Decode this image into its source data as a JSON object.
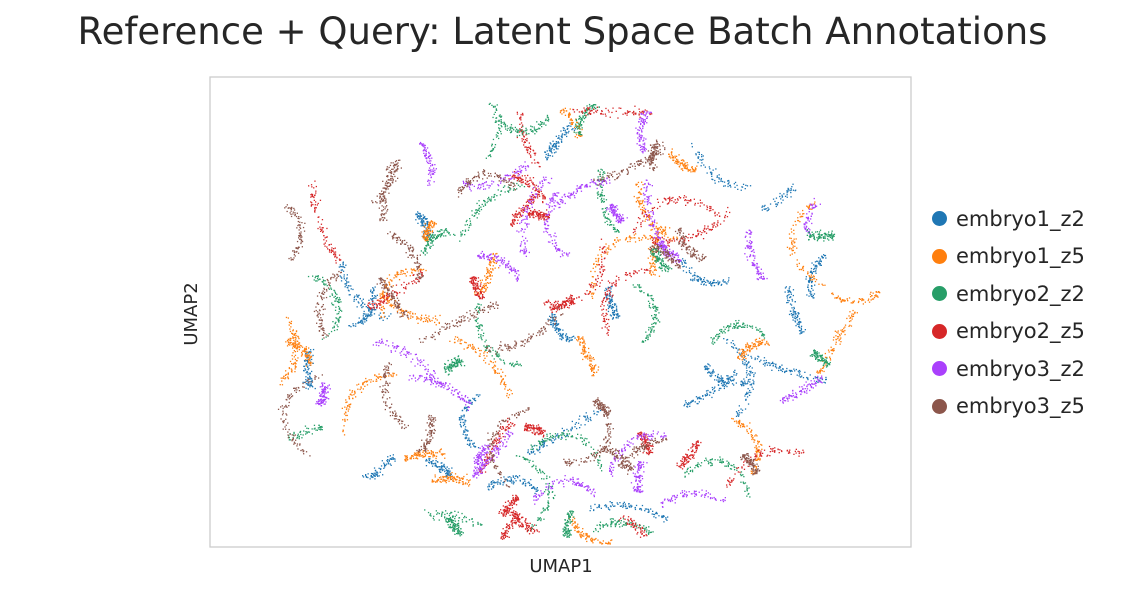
{
  "chart_data": {
    "type": "scatter",
    "title": "Reference + Query: Latent Space Batch Annotations",
    "xlabel": "UMAP1",
    "ylabel": "UMAP2",
    "ticks": "none",
    "grid": false,
    "legend_position": "right",
    "series": [
      {
        "name": "embryo1_z2",
        "color": "#1f77b4"
      },
      {
        "name": "embryo1_z5",
        "color": "#ff7f0e"
      },
      {
        "name": "embryo2_z2",
        "color": "#279e68"
      },
      {
        "name": "embryo2_z5",
        "color": "#d62728"
      },
      {
        "name": "embryo3_z2",
        "color": "#aa40fc"
      },
      {
        "name": "embryo3_z5",
        "color": "#8c564b"
      }
    ]
  }
}
